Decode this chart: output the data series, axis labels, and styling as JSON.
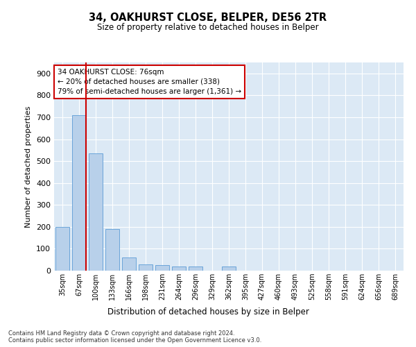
{
  "title1": "34, OAKHURST CLOSE, BELPER, DE56 2TR",
  "title2": "Size of property relative to detached houses in Belper",
  "xlabel": "Distribution of detached houses by size in Belper",
  "ylabel": "Number of detached properties",
  "bar_labels": [
    "35sqm",
    "67sqm",
    "100sqm",
    "133sqm",
    "166sqm",
    "198sqm",
    "231sqm",
    "264sqm",
    "296sqm",
    "329sqm",
    "362sqm",
    "395sqm",
    "427sqm",
    "460sqm",
    "493sqm",
    "525sqm",
    "558sqm",
    "591sqm",
    "624sqm",
    "656sqm",
    "689sqm"
  ],
  "bar_values": [
    200,
    710,
    535,
    190,
    60,
    30,
    25,
    20,
    20,
    0,
    20,
    0,
    0,
    0,
    0,
    0,
    0,
    0,
    0,
    0,
    0
  ],
  "bar_color": "#b8d0ea",
  "bar_edge_color": "#5b9bd5",
  "vline_color": "#cc0000",
  "annotation_text": "34 OAKHURST CLOSE: 76sqm\n← 20% of detached houses are smaller (338)\n79% of semi-detached houses are larger (1,361) →",
  "annotation_box_color": "#ffffff",
  "annotation_box_edge": "#cc0000",
  "ylim": [
    0,
    950
  ],
  "yticks": [
    0,
    100,
    200,
    300,
    400,
    500,
    600,
    700,
    800,
    900
  ],
  "footnote": "Contains HM Land Registry data © Crown copyright and database right 2024.\nContains public sector information licensed under the Open Government Licence v3.0.",
  "bg_color": "#dce9f5",
  "fig_bg_color": "#ffffff"
}
